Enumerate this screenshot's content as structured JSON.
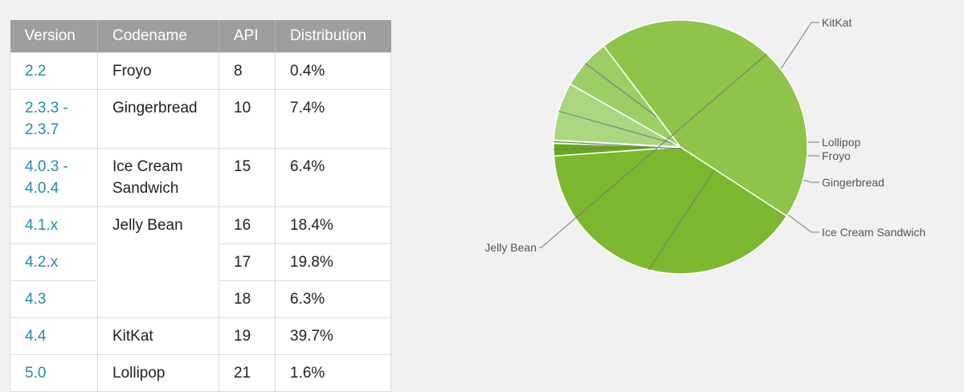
{
  "table": {
    "headers": [
      "Version",
      "Codename",
      "API",
      "Distribution"
    ],
    "rows": [
      {
        "version": "2.2",
        "codename": "Froyo",
        "api": "8",
        "distribution": "0.4%"
      },
      {
        "version": "2.3.3 -\n2.3.7",
        "codename": "Gingerbread",
        "api": "10",
        "distribution": "7.4%"
      },
      {
        "version": "4.0.3 -\n4.0.4",
        "codename": "Ice Cream\nSandwich",
        "api": "15",
        "distribution": "6.4%"
      },
      {
        "version": "4.1.x",
        "codename": "Jelly Bean",
        "api": "16",
        "distribution": "18.4%"
      },
      {
        "version": "4.2.x",
        "codename": "",
        "api": "17",
        "distribution": "19.8%"
      },
      {
        "version": "4.3",
        "codename": "",
        "api": "18",
        "distribution": "6.3%"
      },
      {
        "version": "4.4",
        "codename": "KitKat",
        "api": "19",
        "distribution": "39.7%"
      },
      {
        "version": "5.0",
        "codename": "Lollipop",
        "api": "21",
        "distribution": "1.6%"
      }
    ]
  },
  "chart_data": {
    "type": "pie",
    "title": "",
    "categories": [
      "KitKat",
      "Lollipop",
      "Froyo",
      "Gingerbread",
      "Ice Cream Sandwich",
      "Jelly Bean"
    ],
    "values": [
      39.7,
      1.6,
      0.4,
      7.4,
      6.4,
      44.5
    ],
    "colors": [
      "#7cb82f",
      "#64a91b",
      "#b8dc86",
      "#acd680",
      "#9dcd65",
      "#8fc349"
    ],
    "legend": "labels outside slices with leader lines"
  }
}
